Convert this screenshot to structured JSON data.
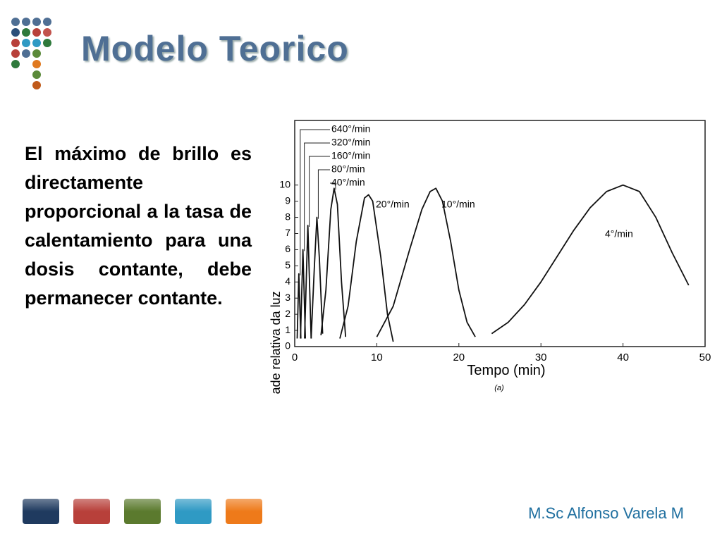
{
  "title": "Modelo Teorico",
  "body": "El máximo de brillo es directamente proporcional a la tasa de calentamiento para una dosis contante, debe permanecer contante.",
  "footer": "M.Sc Alfonso Varela M",
  "chart_data": {
    "type": "line",
    "x_label": "Tempo (min)",
    "y_label": "Intensidade relativa da luz",
    "caption": "(a)",
    "xlim": [
      0,
      50
    ],
    "ylim": [
      0,
      14
    ],
    "xticks": [
      0,
      10,
      20,
      30,
      40,
      50
    ],
    "yticks": [
      0,
      1,
      2,
      3,
      4,
      5,
      6,
      7,
      8,
      9,
      10
    ],
    "series": [
      {
        "name": "640°/min",
        "color": "#111111",
        "x": [
          0.3,
          0.5,
          0.75
        ],
        "values": [
          0.5,
          4.5,
          0.5
        ]
      },
      {
        "name": "320°/min",
        "color": "#111111",
        "x": [
          0.7,
          1.0,
          1.3
        ],
        "values": [
          0.5,
          6.0,
          0.5
        ]
      },
      {
        "name": "160°/min",
        "color": "#111111",
        "x": [
          1.2,
          1.6,
          2.0
        ],
        "values": [
          0.5,
          7.5,
          0.5
        ]
      },
      {
        "name": "80°/min",
        "color": "#111111",
        "x": [
          2.0,
          2.4,
          2.7,
          3.0,
          3.4
        ],
        "values": [
          0.5,
          5.0,
          8.0,
          5.5,
          0.8
        ]
      },
      {
        "name": "40°/min",
        "color": "#111111",
        "x": [
          3.2,
          3.8,
          4.4,
          4.8,
          5.2,
          5.7,
          6.2
        ],
        "values": [
          0.7,
          3.5,
          8.5,
          9.8,
          8.8,
          4.0,
          0.6
        ]
      },
      {
        "name": "20°/min",
        "color": "#111111",
        "x": [
          5.5,
          6.5,
          7.5,
          8.5,
          9.0,
          9.5,
          10.5,
          11.3,
          12.0
        ],
        "values": [
          0.5,
          2.5,
          6.5,
          9.2,
          9.4,
          9.0,
          5.5,
          2.0,
          0.3
        ]
      },
      {
        "name": "10°/min",
        "color": "#111111",
        "x": [
          10,
          12,
          14,
          15.5,
          16.5,
          17.2,
          18,
          19,
          20,
          21,
          22
        ],
        "values": [
          0.6,
          2.5,
          6.0,
          8.5,
          9.6,
          9.8,
          9.0,
          6.5,
          3.5,
          1.5,
          0.6
        ]
      },
      {
        "name": "4°/min",
        "color": "#111111",
        "x": [
          24,
          26,
          28,
          30,
          32,
          34,
          36,
          38,
          40,
          42,
          44,
          46,
          48
        ],
        "values": [
          0.8,
          1.5,
          2.6,
          4.0,
          5.6,
          7.2,
          8.6,
          9.6,
          10,
          9.6,
          8.0,
          5.8,
          3.8
        ]
      }
    ]
  }
}
